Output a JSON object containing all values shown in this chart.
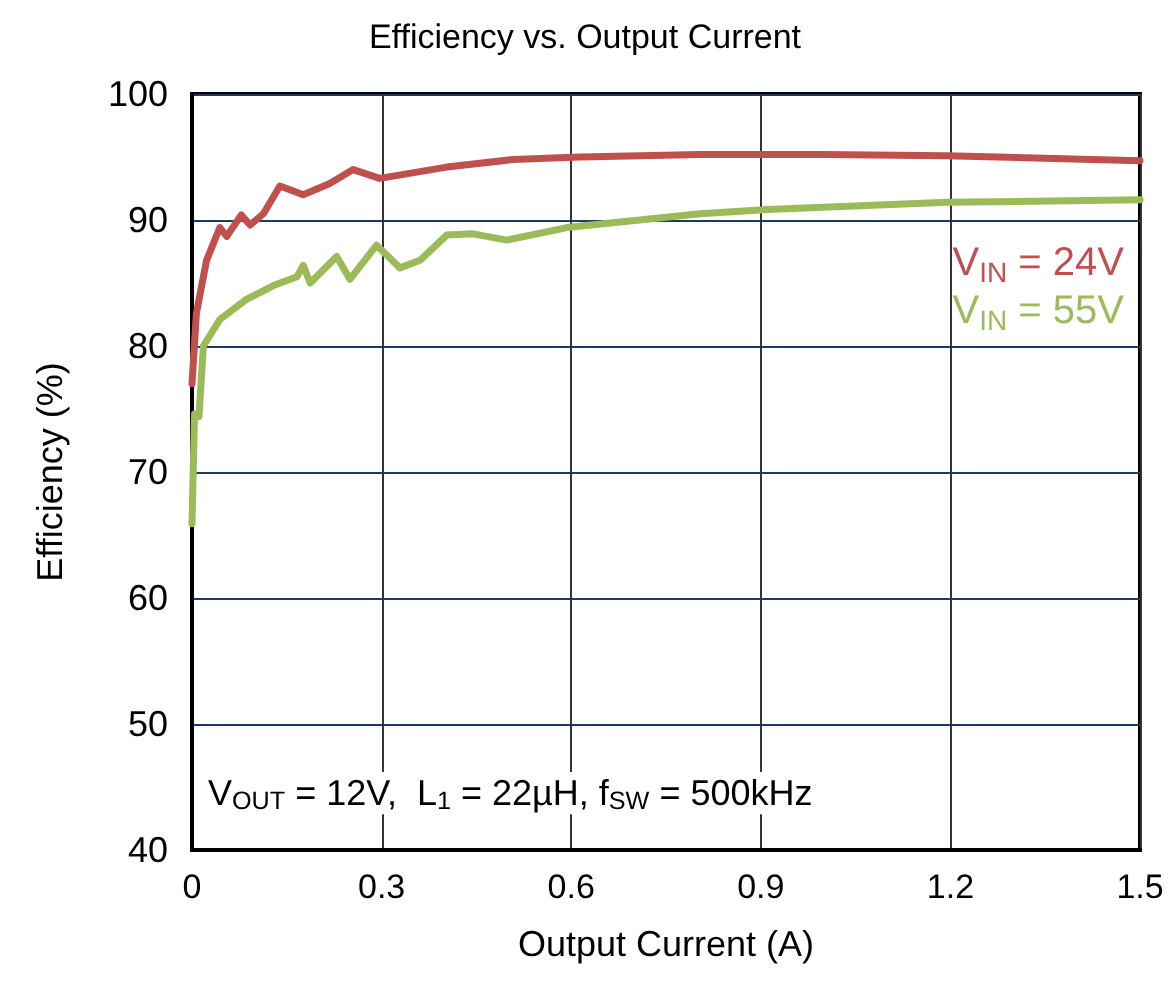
{
  "chart_data": {
    "type": "line",
    "title": "Efficiency vs. Output Current",
    "xlabel": "Output Current (A)",
    "ylabel": "Efficiency (%)",
    "xlim": [
      0,
      1.5
    ],
    "xticks": [
      {
        "value": 0,
        "label": "0"
      },
      0.3,
      0.6,
      0.9,
      1.2,
      1.5
    ],
    "ylim": [
      40,
      100
    ],
    "yticks": [
      40,
      50,
      60,
      70,
      80,
      90,
      100
    ],
    "grid": true,
    "legend": "right",
    "marker": "none",
    "line_style": "solid",
    "annotations": [
      "V$_{OUT}$ = 12V,  L$_{1}$ = 22µH, f$_{SW}$ = 500kHz"
    ],
    "series": [
      {
        "name": "V$_{IN}$ = 24V",
        "color": "#c0504d",
        "x": [
          0,
          0.007,
          0.023,
          0.044,
          0.055,
          0.078,
          0.092,
          0.113,
          0.139,
          0.176,
          0.218,
          0.255,
          0.297,
          0.403,
          0.508,
          0.614,
          0.804,
          1.0,
          1.194,
          1.5
        ],
        "values": [
          77.0,
          82.6,
          86.8,
          89.4,
          88.7,
          90.4,
          89.6,
          90.5,
          92.7,
          92.0,
          92.9,
          94.0,
          93.3,
          94.2,
          94.8,
          95.0,
          95.2,
          95.2,
          95.1,
          94.7
        ]
      },
      {
        "name": "V$_{IN}$ = 55V",
        "color": "#9bbb59",
        "x": [
          0,
          0.004,
          0.011,
          0.018,
          0.044,
          0.086,
          0.129,
          0.166,
          0.176,
          0.187,
          0.229,
          0.25,
          0.292,
          0.329,
          0.361,
          0.403,
          0.445,
          0.498,
          0.593,
          0.804,
          0.899,
          1.194,
          1.5
        ],
        "values": [
          65.9,
          74.6,
          74.4,
          80.0,
          82.1,
          83.7,
          84.8,
          85.5,
          86.4,
          85.0,
          87.1,
          85.3,
          88.0,
          86.2,
          86.8,
          88.8,
          88.9,
          88.4,
          89.4,
          90.5,
          90.8,
          91.4,
          91.6
        ]
      }
    ]
  }
}
